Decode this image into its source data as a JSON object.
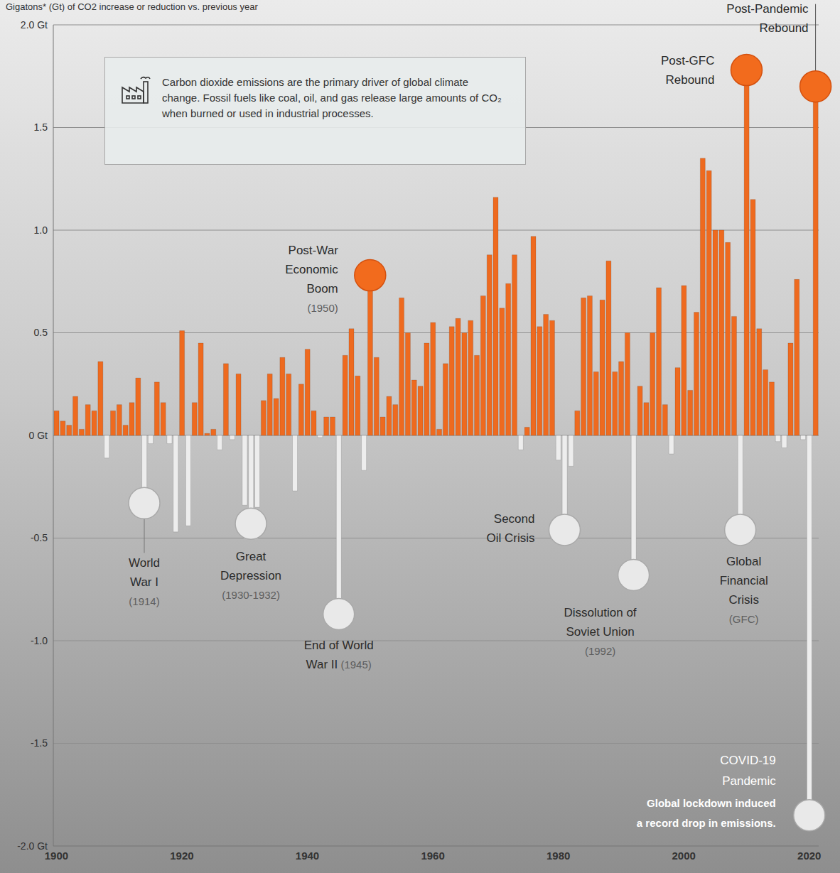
{
  "chart_data": {
    "type": "bar",
    "title": "Gigatons* (Gt) of CO2 increase or reduction vs. previous year",
    "note": "Carbon dioxide emissions are the primary driver of global climate change. Fossil fuels like coal, oil, and gas release large amounts of CO₂ when burned or used in industrial processes.",
    "categories": [
      1900,
      1901,
      1902,
      1903,
      1904,
      1905,
      1906,
      1907,
      1908,
      1909,
      1910,
      1911,
      1912,
      1913,
      1914,
      1915,
      1916,
      1917,
      1918,
      1919,
      1920,
      1921,
      1922,
      1923,
      1924,
      1925,
      1926,
      1927,
      1928,
      1929,
      1930,
      1931,
      1932,
      1933,
      1934,
      1935,
      1936,
      1937,
      1938,
      1939,
      1940,
      1941,
      1942,
      1943,
      1944,
      1945,
      1946,
      1947,
      1948,
      1949,
      1950,
      1951,
      1952,
      1953,
      1954,
      1955,
      1956,
      1957,
      1958,
      1959,
      1960,
      1961,
      1962,
      1963,
      1964,
      1965,
      1966,
      1967,
      1968,
      1969,
      1970,
      1971,
      1972,
      1973,
      1974,
      1975,
      1976,
      1977,
      1978,
      1979,
      1980,
      1981,
      1982,
      1983,
      1984,
      1985,
      1986,
      1987,
      1988,
      1989,
      1990,
      1991,
      1992,
      1993,
      1994,
      1995,
      1996,
      1997,
      1998,
      1999,
      2000,
      2001,
      2002,
      2003,
      2004,
      2005,
      2006,
      2007,
      2008,
      2009,
      2010,
      2011,
      2012,
      2013,
      2014,
      2015,
      2016,
      2017,
      2018,
      2019,
      2020,
      2021
    ],
    "values": [
      0.12,
      0.07,
      0.05,
      0.19,
      0.03,
      0.15,
      0.12,
      0.36,
      -0.11,
      0.12,
      0.15,
      0.05,
      0.16,
      0.28,
      -0.33,
      -0.04,
      0.26,
      0.16,
      -0.04,
      -0.47,
      0.51,
      -0.44,
      0.16,
      0.45,
      0.01,
      0.03,
      -0.07,
      0.35,
      -0.02,
      0.3,
      -0.34,
      -0.43,
      -0.35,
      0.17,
      0.3,
      0.18,
      0.38,
      0.3,
      -0.27,
      0.25,
      0.42,
      0.12,
      -0.01,
      0.09,
      0.09,
      -0.87,
      0.39,
      0.52,
      0.29,
      -0.17,
      0.78,
      0.38,
      0.09,
      0.19,
      0.15,
      0.67,
      0.5,
      0.27,
      0.24,
      0.45,
      0.55,
      0.03,
      0.35,
      0.53,
      0.57,
      0.5,
      0.56,
      0.39,
      0.68,
      0.88,
      1.16,
      0.62,
      0.74,
      0.88,
      -0.07,
      0.04,
      0.97,
      0.53,
      0.59,
      0.56,
      -0.12,
      -0.46,
      -0.15,
      0.12,
      0.67,
      0.68,
      0.31,
      0.66,
      0.85,
      0.31,
      0.36,
      0.5,
      -0.68,
      0.24,
      0.16,
      0.5,
      0.72,
      0.15,
      -0.09,
      0.33,
      0.73,
      0.22,
      0.6,
      1.35,
      1.29,
      1.0,
      1.0,
      0.94,
      0.58,
      -0.46,
      1.78,
      1.15,
      0.52,
      0.32,
      0.26,
      -0.03,
      -0.06,
      0.45,
      0.76,
      -0.02,
      -1.85,
      1.7
    ],
    "colors": [
      "#ee6a1f",
      "#ee6a1f",
      "#ee6a1f",
      "#ee6a1f",
      "#ee6a1f",
      "#ee6a1f",
      "#ee6a1f",
      "#ee6a1f",
      "#ededed",
      "#ee6a1f",
      "#ee6a1f",
      "#ee6a1f",
      "#ee6a1f",
      "#ee6a1f",
      "#ededed",
      "#ededed",
      "#ee6a1f",
      "#ee6a1f",
      "#ededed",
      "#ededed",
      "#ee6a1f",
      "#ededed",
      "#ee6a1f",
      "#ee6a1f",
      "#ee6a1f",
      "#ee6a1f",
      "#ededed",
      "#ee6a1f",
      "#ededed",
      "#ee6a1f",
      "#ededed",
      "#ededed",
      "#ededed",
      "#ee6a1f",
      "#ee6a1f",
      "#ee6a1f",
      "#ee6a1f",
      "#ee6a1f",
      "#ededed",
      "#ee6a1f",
      "#ee6a1f",
      "#ee6a1f",
      "#ededed",
      "#ee6a1f",
      "#ee6a1f",
      "#ededed",
      "#ee6a1f",
      "#ee6a1f",
      "#ee6a1f",
      "#ededed",
      "#ee6a1f",
      "#ee6a1f",
      "#ee6a1f",
      "#ee6a1f",
      "#ee6a1f",
      "#ee6a1f",
      "#ee6a1f",
      "#ee6a1f",
      "#ee6a1f",
      "#ee6a1f",
      "#ee6a1f",
      "#ee6a1f",
      "#ee6a1f",
      "#ee6a1f",
      "#ee6a1f",
      "#ee6a1f",
      "#ee6a1f",
      "#ee6a1f",
      "#ee6a1f",
      "#ee6a1f",
      "#ee6a1f",
      "#ee6a1f",
      "#ee6a1f",
      "#ee6a1f",
      "#ededed",
      "#ee6a1f",
      "#ee6a1f",
      "#ee6a1f",
      "#ee6a1f",
      "#ee6a1f",
      "#ededed",
      "#ededed",
      "#ededed",
      "#ee6a1f",
      "#ee6a1f",
      "#ee6a1f",
      "#ee6a1f",
      "#ee6a1f",
      "#ee6a1f",
      "#ee6a1f",
      "#ee6a1f",
      "#ee6a1f",
      "#ededed",
      "#ee6a1f",
      "#ee6a1f",
      "#ee6a1f",
      "#ee6a1f",
      "#ee6a1f",
      "#ededed",
      "#ee6a1f",
      "#ee6a1f",
      "#ee6a1f",
      "#ee6a1f",
      "#ee6a1f",
      "#ee6a1f",
      "#ee6a1f",
      "#ee6a1f",
      "#ee6a1f",
      "#ee6a1f",
      "#ededed",
      "#ee6a1f",
      "#ee6a1f",
      "#ee6a1f",
      "#ee6a1f",
      "#ee6a1f",
      "#ededed",
      "#ededed",
      "#ee6a1f",
      "#ee6a1f",
      "#ededed",
      "#ededed",
      "#ee6a1f"
    ],
    "ylim": [
      -2,
      2
    ],
    "yticks": [
      {
        "value": -2,
        "label": "-2.0 Gt"
      },
      -1.5,
      {
        "value": -1,
        "label": "-1.0"
      },
      -0.5,
      {
        "value": 0,
        "label": "0 Gt"
      },
      0.5,
      {
        "value": 1,
        "label": "1.0"
      },
      1.5,
      {
        "value": 2,
        "label": "2.0 Gt"
      }
    ],
    "xticks": [
      1900,
      1920,
      1940,
      1960,
      1980,
      2000,
      2020
    ],
    "grid": true,
    "annotations": [
      {
        "x": 1914,
        "lines": [
          "World",
          "War I"
        ],
        "note": "(1914)"
      },
      {
        "x": 1931,
        "lines": [
          "Great",
          "Depression"
        ],
        "note": "(1930-1932)"
      },
      {
        "x": 1945,
        "lines": [
          "End of World",
          "War II"
        ],
        "note": "(1945)"
      },
      {
        "x": 1950,
        "lines": [
          "Post-War",
          "Economic",
          "Boom"
        ],
        "note": "(1950)"
      },
      {
        "x": 1981,
        "lines": [
          "Second",
          "Oil Crisis"
        ]
      },
      {
        "x": 1992,
        "lines": [
          "Dissolution of",
          "Soviet Union"
        ],
        "note": "(1992)"
      },
      {
        "x": 2009,
        "lines": [
          "Global",
          "Financial",
          "Crisis"
        ],
        "note": "(GFC)"
      },
      {
        "x": 2010,
        "lines": [
          "Post-GFC",
          "Rebound"
        ]
      },
      {
        "x": 2021,
        "lines": [
          "Post-Pandemic",
          "Rebound"
        ]
      },
      {
        "x": 2020,
        "lines": [
          "COVID-19",
          "Pandemic",
          "Global lockdown induced",
          "a record drop in emissions."
        ]
      }
    ]
  }
}
